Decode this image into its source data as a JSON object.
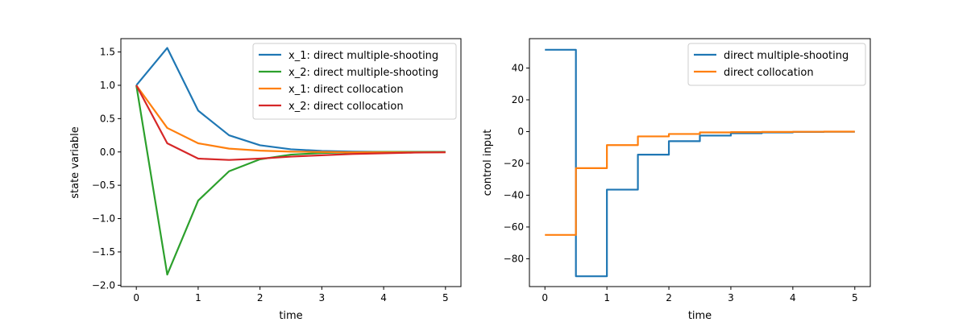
{
  "chart_data": [
    {
      "type": "line",
      "xlabel": "time",
      "ylabel": "state variable",
      "xlim": [
        -0.25,
        5.25
      ],
      "ylim": [
        -2.02,
        1.7
      ],
      "xticks": [
        0,
        1,
        2,
        3,
        4,
        5
      ],
      "yticks": [
        -2.0,
        -1.5,
        -1.0,
        -0.5,
        0.0,
        0.5,
        1.0,
        1.5
      ],
      "ytick_labels": [
        "−2.0",
        "−1.5",
        "−1.0",
        "−0.5",
        "0.0",
        "0.5",
        "1.0",
        "1.5"
      ],
      "legend_position": "top-right",
      "x": [
        0,
        0.5,
        1,
        1.5,
        2,
        2.5,
        3,
        3.5,
        4,
        4.5,
        5
      ],
      "series": [
        {
          "name": "x_1: direct multiple-shooting",
          "color": "#1f77b4",
          "values": [
            1.0,
            1.56,
            0.62,
            0.25,
            0.1,
            0.04,
            0.015,
            0.005,
            0.0,
            0.0,
            0.0
          ]
        },
        {
          "name": "x_2: direct multiple-shooting",
          "color": "#2ca02c",
          "values": [
            1.0,
            -1.84,
            -0.73,
            -0.29,
            -0.11,
            -0.04,
            -0.015,
            -0.005,
            0.0,
            0.0,
            0.0
          ]
        },
        {
          "name": "x_1: direct collocation",
          "color": "#ff7f0e",
          "values": [
            1.0,
            0.36,
            0.13,
            0.05,
            0.02,
            0.005,
            0.0,
            -0.005,
            -0.005,
            -0.005,
            -0.005
          ]
        },
        {
          "name": "x_2: direct collocation",
          "color": "#d62728",
          "values": [
            1.0,
            0.13,
            -0.1,
            -0.12,
            -0.1,
            -0.07,
            -0.05,
            -0.03,
            -0.02,
            -0.01,
            -0.005
          ]
        }
      ]
    },
    {
      "type": "line",
      "step": "post",
      "xlabel": "time",
      "ylabel": "control input",
      "xlim": [
        -0.25,
        5.25
      ],
      "ylim": [
        -97.5,
        58.5
      ],
      "xticks": [
        0,
        1,
        2,
        3,
        4,
        5
      ],
      "yticks": [
        -80,
        -60,
        -40,
        -20,
        0,
        20,
        40
      ],
      "ytick_labels": [
        "−80",
        "−60",
        "−40",
        "−20",
        "0",
        "20",
        "40"
      ],
      "legend_position": "top-right",
      "x": [
        0,
        0.5,
        1,
        1.5,
        2,
        2.5,
        3,
        3.5,
        4,
        4.5,
        5
      ],
      "series": [
        {
          "name": "direct multiple-shooting",
          "color": "#1f77b4",
          "values": [
            51.5,
            -91.0,
            -36.5,
            -14.5,
            -6.0,
            -2.5,
            -1.0,
            -0.5,
            -0.2,
            -0.1,
            -0.1
          ]
        },
        {
          "name": "direct collocation",
          "color": "#ff7f0e",
          "values": [
            -65.0,
            -23.0,
            -8.5,
            -3.0,
            -1.5,
            -0.5,
            -0.3,
            -0.2,
            -0.1,
            0.0,
            0.0
          ]
        }
      ]
    }
  ]
}
